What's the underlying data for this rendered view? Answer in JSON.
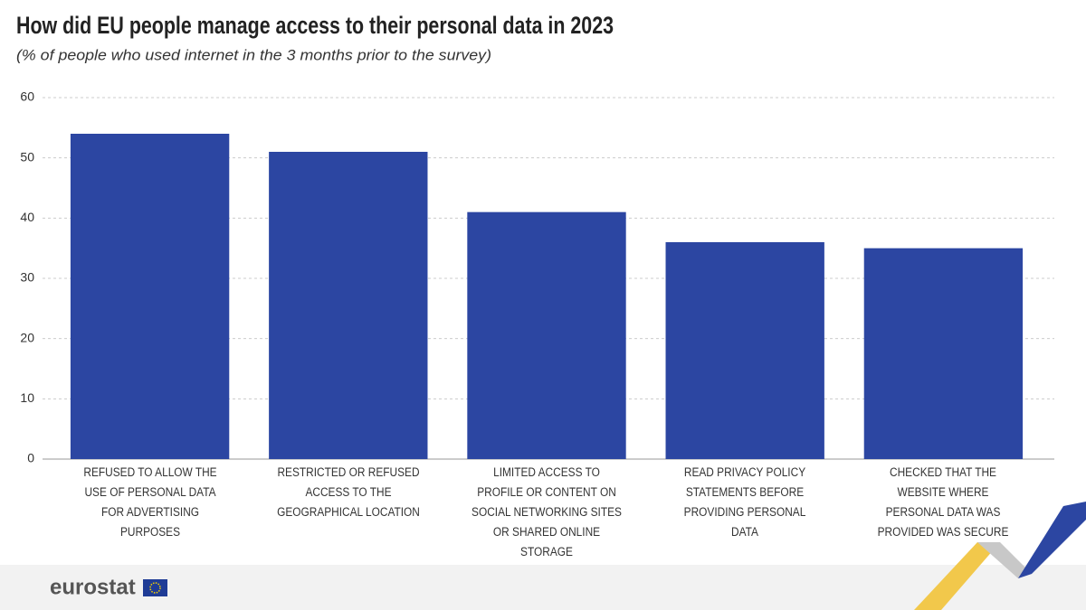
{
  "chart_data": {
    "type": "bar",
    "title": "How did EU people manage access to their personal data in 2023",
    "subtitle": "(% of people who used internet in the 3 months prior to the survey)",
    "categories": [
      "REFUSED TO ALLOW THE USE OF PERSONAL DATA FOR ADVERTISING PURPOSES",
      "RESTRICTED OR REFUSED ACCESS TO THE GEOGRAPHICAL LOCATION",
      "LIMITED ACCESS TO PROFILE OR CONTENT ON SOCIAL NETWORKING SITES OR SHARED ONLINE STORAGE",
      "READ PRIVACY POLICY STATEMENTS BEFORE PROVIDING PERSONAL DATA",
      "CHECKED THAT THE WEBSITE WHERE PERSONAL DATA WAS PROVIDED WAS SECURE"
    ],
    "values": [
      54,
      51,
      41,
      36,
      35
    ],
    "color": "#2c46a2",
    "ylim": [
      0,
      60
    ],
    "yticks": [
      0,
      10,
      20,
      30,
      40,
      50,
      60
    ],
    "grid": true,
    "logo": "eurostat"
  }
}
